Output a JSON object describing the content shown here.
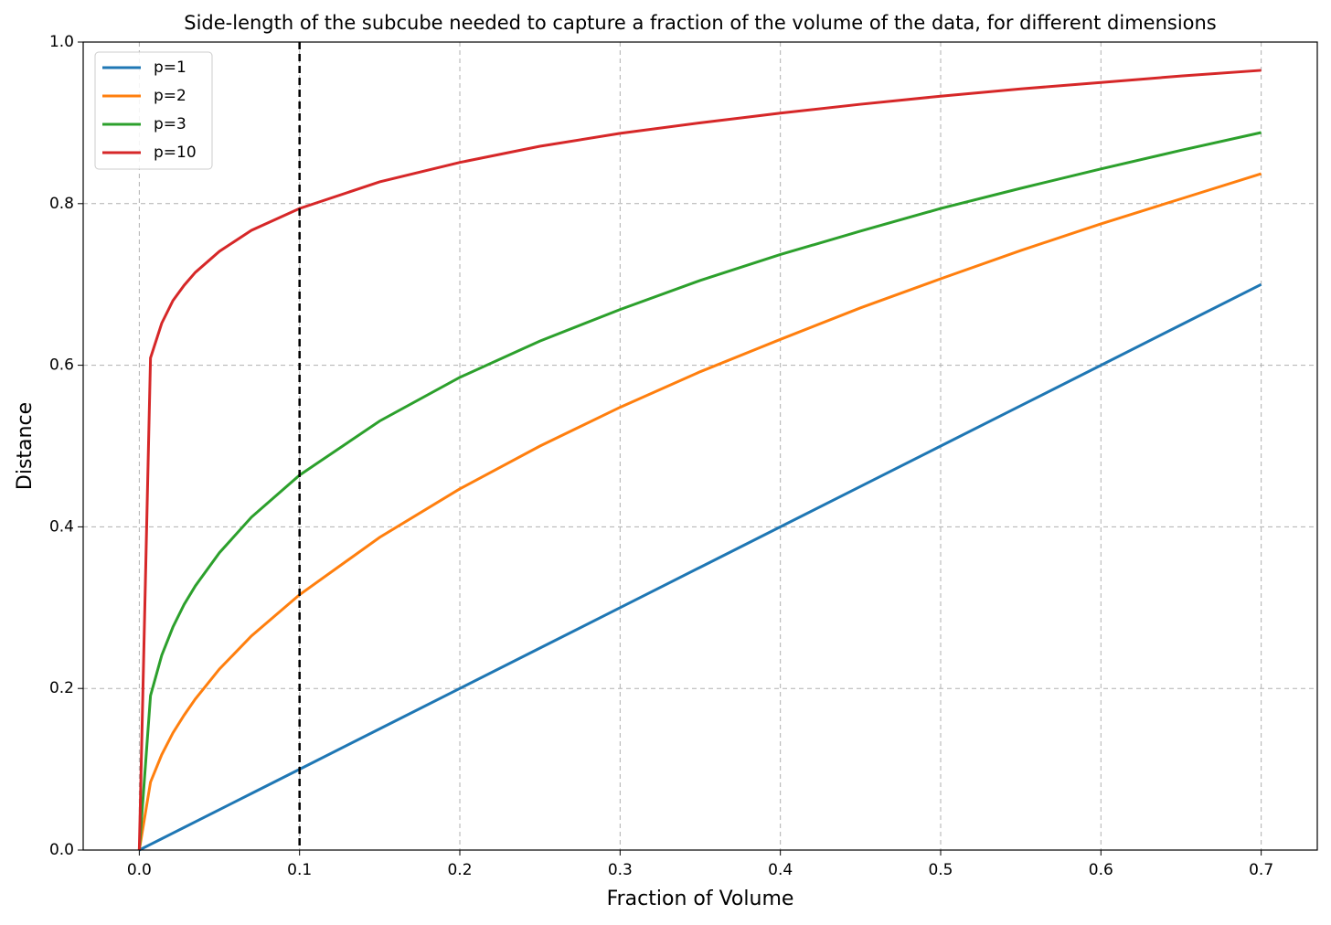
{
  "chart_data": {
    "type": "line",
    "title": "Side-length of the subcube needed to capture a fraction of the volume of the data, for different dimensions",
    "x_label": "Fraction of Volume",
    "y_label": "Distance",
    "x": [
      0,
      0.007,
      0.014,
      0.021,
      0.028,
      0.035,
      0.05,
      0.07,
      0.1,
      0.15,
      0.2,
      0.25,
      0.3,
      0.35,
      0.4,
      0.45,
      0.5,
      0.55,
      0.6,
      0.65,
      0.7
    ],
    "series": [
      {
        "name": "p=1",
        "color": "#1f77b4",
        "values": [
          0,
          0.007,
          0.014,
          0.021,
          0.028,
          0.035,
          0.05,
          0.07,
          0.1,
          0.15,
          0.2,
          0.25,
          0.3,
          0.35,
          0.4,
          0.45,
          0.5,
          0.55,
          0.6,
          0.65,
          0.7
        ]
      },
      {
        "name": "p=2",
        "color": "#ff7f0e",
        "values": [
          0,
          0.084,
          0.118,
          0.145,
          0.167,
          0.187,
          0.224,
          0.265,
          0.316,
          0.387,
          0.447,
          0.5,
          0.548,
          0.592,
          0.632,
          0.671,
          0.707,
          0.742,
          0.775,
          0.806,
          0.837
        ]
      },
      {
        "name": "p=3",
        "color": "#2ca02c",
        "values": [
          0,
          0.191,
          0.241,
          0.276,
          0.304,
          0.327,
          0.368,
          0.412,
          0.464,
          0.531,
          0.585,
          0.63,
          0.669,
          0.705,
          0.737,
          0.766,
          0.794,
          0.819,
          0.843,
          0.866,
          0.888
        ]
      },
      {
        "name": "p=10",
        "color": "#d62728",
        "values": [
          0,
          0.609,
          0.652,
          0.68,
          0.699,
          0.715,
          0.741,
          0.767,
          0.794,
          0.827,
          0.851,
          0.871,
          0.887,
          0.9,
          0.912,
          0.923,
          0.933,
          0.942,
          0.95,
          0.958,
          0.965
        ]
      }
    ],
    "vline": 0.1,
    "xlim": [
      -0.035,
      0.735
    ],
    "ylim": [
      0,
      1
    ],
    "xticks": [
      {
        "value": 0,
        "label": "0.0"
      },
      0.1,
      0.2,
      0.3,
      0.4,
      0.5,
      0.6,
      0.7
    ],
    "yticks": [
      {
        "value": 0,
        "label": "0.0"
      },
      0.2,
      0.4,
      0.6,
      0.8,
      {
        "value": 1,
        "label": "1.0"
      }
    ],
    "grid": true,
    "legend": "upper left"
  }
}
